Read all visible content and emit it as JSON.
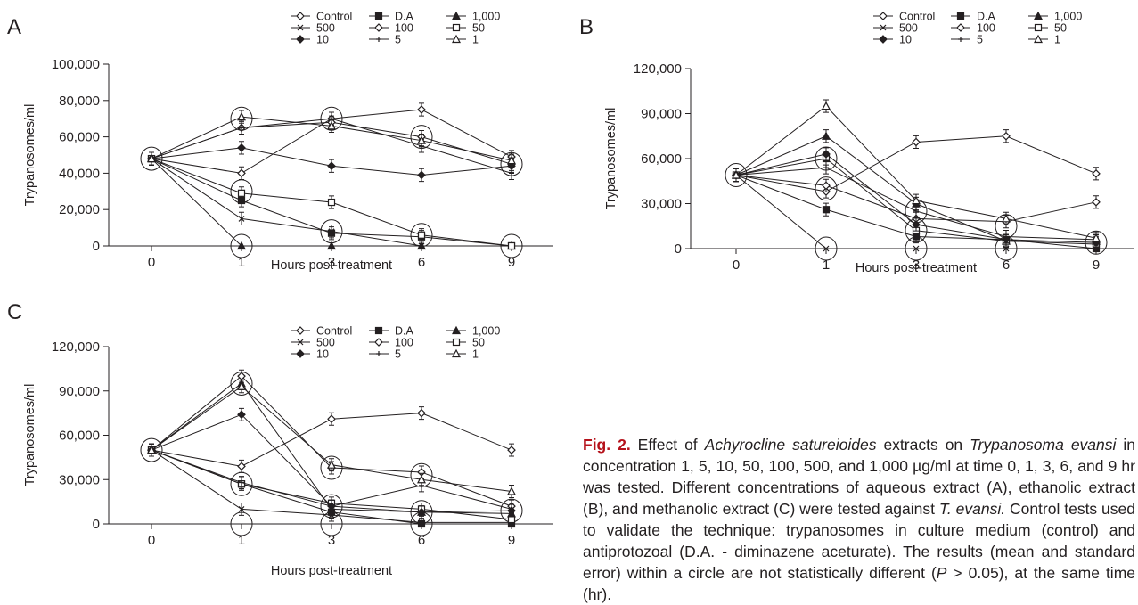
{
  "caption": {
    "fig_label": "Fig. 2.",
    "t1": " Effect of ",
    "species1": "Achyrocline satureioides",
    "t2": " extracts on ",
    "species2": "Trypanosoma evansi",
    "t3": " in concentration 1, 5, 10, 50, 100, 500, and 1,000 µg/ml at time 0, 1, 3, 6, and 9 hr was tested. Different concentrations of aqueous extract (A), ethanolic extract (B), and methanolic extract (C) were tested against ",
    "species3": "T. evansi.",
    "t4": " Control tests used to validate the technique: trypanosomes in culture medium (control) and antiprotozoal (D.A. - diminazene aceturate). The results (mean and standard error) within a circle are not statistically different (",
    "p": "P",
    "t5": " > 0.05), at the same time (hr)."
  },
  "colors": {
    "ink": "#231f20",
    "accent": "#b5121b"
  },
  "chart_data": [
    {
      "panel": "A",
      "type": "line",
      "xlabel": "Hours post-treatment",
      "ylabel": "Trypanosomes/ml",
      "x": [
        0,
        1,
        3,
        6,
        9
      ],
      "x_tick_labels": [
        "0",
        "1",
        "3",
        "6",
        "9"
      ],
      "ylim": [
        0,
        100000
      ],
      "y_tick_labels": [
        "0",
        "20,000",
        "40,000",
        "60,000",
        "80,000",
        "100,000"
      ],
      "grid": false,
      "legend": "top-right",
      "series": [
        {
          "name": "Control",
          "marker": "diamond-open",
          "values": [
            48000,
            40000,
            70000,
            75000,
            49000
          ]
        },
        {
          "name": "D.A",
          "marker": "square-filled",
          "values": [
            48000,
            25000,
            7000,
            5000,
            0
          ]
        },
        {
          "name": "1,000",
          "marker": "triangle-filled",
          "values": [
            48000,
            0,
            0,
            0,
            0
          ]
        },
        {
          "name": "500",
          "marker": "x",
          "values": [
            48000,
            15000,
            8000,
            0,
            0
          ]
        },
        {
          "name": "100",
          "marker": "diamond-open",
          "values": [
            48000,
            65000,
            68000,
            60000,
            45000
          ]
        },
        {
          "name": "50",
          "marker": "square-open",
          "values": [
            48000,
            29000,
            24000,
            6000,
            0
          ]
        },
        {
          "name": "10",
          "marker": "diamond-filled",
          "values": [
            48000,
            54000,
            44000,
            39000,
            44000
          ]
        },
        {
          "name": "5",
          "marker": "plus",
          "values": [
            48000,
            65000,
            70000,
            55000,
            40000
          ]
        },
        {
          "name": "1",
          "marker": "triangle-open",
          "values": [
            48000,
            71000,
            66000,
            58000,
            47000
          ]
        }
      ],
      "circles": [
        [
          0,
          48000
        ],
        [
          1,
          70000
        ],
        [
          1,
          30000
        ],
        [
          1,
          0
        ],
        [
          3,
          70000
        ],
        [
          3,
          8000
        ],
        [
          6,
          60000
        ],
        [
          6,
          6000
        ],
        [
          9,
          45000
        ],
        [
          9,
          0
        ]
      ]
    },
    {
      "panel": "B",
      "type": "line",
      "xlabel": "Hours post-treatment",
      "ylabel": "Trypanosomes/ml",
      "x": [
        0,
        1,
        3,
        6,
        9
      ],
      "x_tick_labels": [
        "0",
        "1",
        "3",
        "6",
        "9"
      ],
      "ylim": [
        0,
        120000
      ],
      "y_tick_labels": [
        "0",
        "30,000",
        "60,000",
        "90,000",
        "120,000"
      ],
      "grid": false,
      "legend": "top-right",
      "series": [
        {
          "name": "Control",
          "marker": "diamond-open",
          "values": [
            49000,
            38000,
            71000,
            75000,
            50000
          ]
        },
        {
          "name": "D.A",
          "marker": "square-filled",
          "values": [
            49000,
            26000,
            8000,
            6000,
            0
          ]
        },
        {
          "name": "1,000",
          "marker": "triangle-filled",
          "values": [
            49000,
            75000,
            30000,
            5000,
            5000
          ]
        },
        {
          "name": "500",
          "marker": "x",
          "values": [
            49000,
            0,
            0,
            0,
            0
          ]
        },
        {
          "name": "100",
          "marker": "diamond-open",
          "values": [
            49000,
            42000,
            20000,
            18000,
            31000
          ]
        },
        {
          "name": "50",
          "marker": "square-open",
          "values": [
            49000,
            60000,
            12000,
            5000,
            3000
          ]
        },
        {
          "name": "10",
          "marker": "diamond-filled",
          "values": [
            49000,
            63000,
            16000,
            6000,
            4000
          ]
        },
        {
          "name": "5",
          "marker": "plus",
          "values": [
            49000,
            54000,
            25000,
            8000,
            6000
          ]
        },
        {
          "name": "1",
          "marker": "triangle-open",
          "values": [
            49000,
            95000,
            32000,
            20000,
            7000
          ]
        }
      ],
      "circles": [
        [
          0,
          49000
        ],
        [
          1,
          60000
        ],
        [
          1,
          40000
        ],
        [
          1,
          0
        ],
        [
          3,
          25000
        ],
        [
          3,
          12000
        ],
        [
          3,
          0
        ],
        [
          6,
          15000
        ],
        [
          6,
          0
        ],
        [
          9,
          4000
        ]
      ]
    },
    {
      "panel": "C",
      "type": "line",
      "xlabel": "Hours post-treatment",
      "ylabel": "Trypanosomes/ml",
      "x": [
        0,
        1,
        3,
        6,
        9
      ],
      "x_tick_labels": [
        "0",
        "1",
        "3",
        "6",
        "9"
      ],
      "ylim": [
        0,
        120000
      ],
      "y_tick_labels": [
        "0",
        "30,000",
        "60,000",
        "90,000",
        "120,000"
      ],
      "grid": false,
      "legend": "top-right",
      "series": [
        {
          "name": "Control",
          "marker": "diamond-open",
          "values": [
            50000,
            39000,
            71000,
            75000,
            50000
          ]
        },
        {
          "name": "D.A",
          "marker": "square-filled",
          "values": [
            50000,
            27000,
            8000,
            0,
            0
          ]
        },
        {
          "name": "1,000",
          "marker": "triangle-filled",
          "values": [
            50000,
            95000,
            10000,
            8000,
            7000
          ]
        },
        {
          "name": "500",
          "marker": "x",
          "values": [
            50000,
            10000,
            6000,
            1000,
            1000
          ]
        },
        {
          "name": "100",
          "marker": "diamond-open",
          "values": [
            50000,
            100000,
            38000,
            35000,
            12000
          ]
        },
        {
          "name": "50",
          "marker": "square-open",
          "values": [
            50000,
            27000,
            14000,
            10000,
            3000
          ]
        },
        {
          "name": "10",
          "marker": "diamond-filled",
          "values": [
            50000,
            74000,
            12000,
            8000,
            9000
          ]
        },
        {
          "name": "5",
          "marker": "plus",
          "values": [
            50000,
            28000,
            12000,
            26000,
            10000
          ]
        },
        {
          "name": "1",
          "marker": "triangle-open",
          "values": [
            50000,
            93000,
            40000,
            30000,
            22000
          ]
        }
      ],
      "circles": [
        [
          0,
          50000
        ],
        [
          1,
          95000
        ],
        [
          1,
          27000
        ],
        [
          1,
          0
        ],
        [
          3,
          38000
        ],
        [
          3,
          12000
        ],
        [
          3,
          0
        ],
        [
          6,
          33000
        ],
        [
          6,
          8000
        ],
        [
          6,
          0
        ],
        [
          9,
          9000
        ]
      ]
    }
  ]
}
